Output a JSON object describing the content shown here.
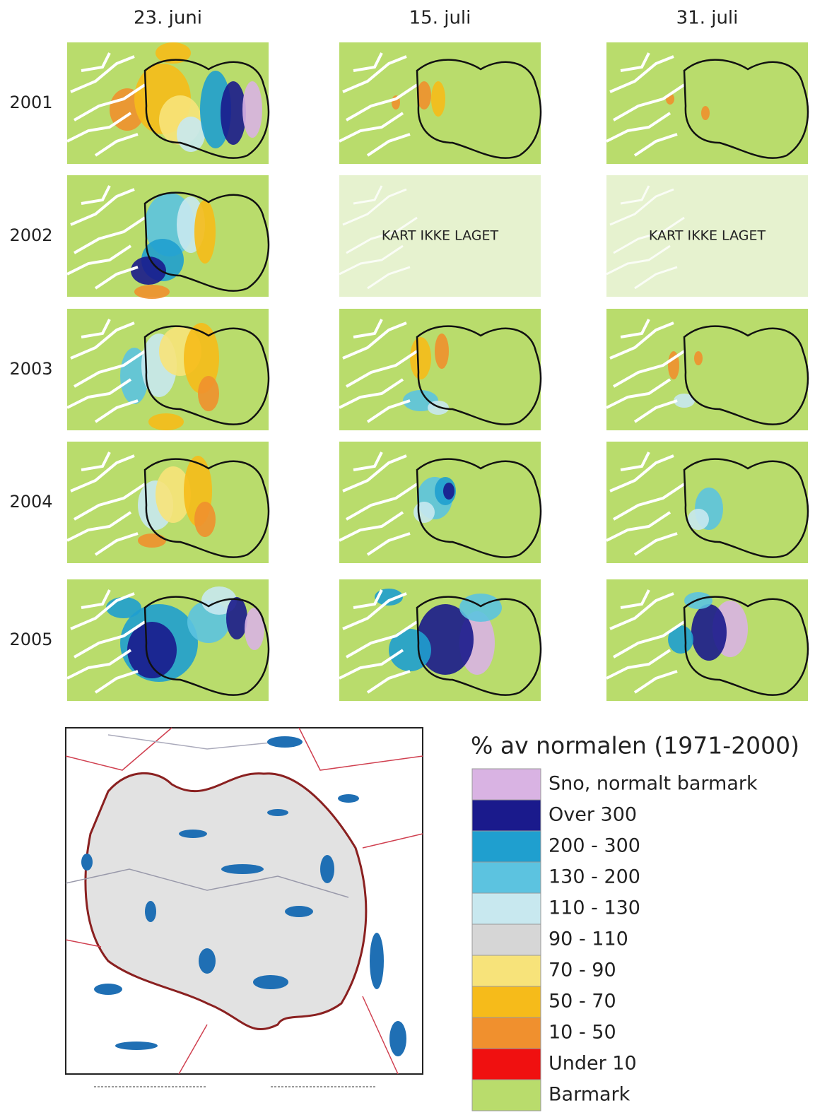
{
  "columns": [
    "23. juni",
    "15. juli",
    "31. juli"
  ],
  "rows": [
    {
      "label": "2001"
    },
    {
      "label": "2002",
      "notes": [
        null,
        "KART IKKE LAGET",
        "KART IKKE LAGET"
      ]
    },
    {
      "label": "2003"
    },
    {
      "label": "2004"
    },
    {
      "label": "2005"
    }
  ],
  "legend": {
    "title": "% av normalen (1971-2000)",
    "items": [
      {
        "label": "Sno, normalt barmark",
        "color": "#d9b3e3"
      },
      {
        "label": "Over 300",
        "color": "#1a1a8c"
      },
      {
        "label": "200 - 300",
        "color": "#1f9fcf"
      },
      {
        "label": "130 - 200",
        "color": "#5cc3e0"
      },
      {
        "label": "110 - 130",
        "color": "#c8e8ef"
      },
      {
        "label": "90 - 110",
        "color": "#d6d6d6"
      },
      {
        "label": "70 - 90",
        "color": "#f7e37a"
      },
      {
        "label": "50 - 70",
        "color": "#f6bb1a"
      },
      {
        "label": "10 - 50",
        "color": "#f0902e"
      },
      {
        "label": "Under 10",
        "color": "#f01010"
      },
      {
        "label": "Barmark",
        "color": "#b9dc6c"
      }
    ]
  }
}
